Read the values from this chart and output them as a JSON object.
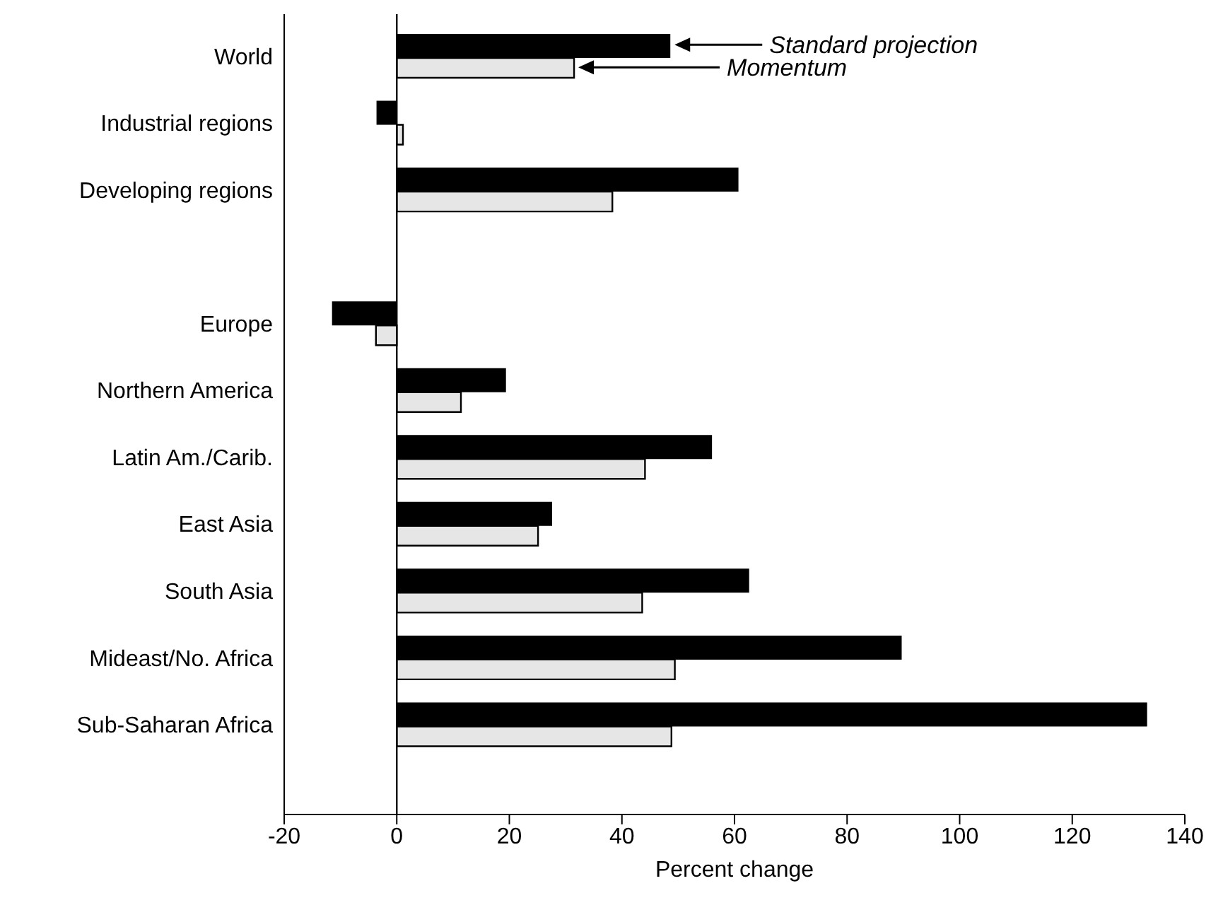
{
  "chart_data": {
    "type": "bar",
    "orientation": "horizontal",
    "xlabel": "Percent change",
    "categories": [
      "World",
      "Industrial regions",
      "Developing regions",
      null,
      "Europe",
      "Northern America",
      "Latin Am./Carib.",
      "East Asia",
      "South Asia",
      "Mideast/No. Africa",
      "Sub-Saharan Africa"
    ],
    "series": [
      {
        "color": "#000000",
        "values": [
          48.6,
          -3.6,
          60.7,
          null,
          -11.5,
          19.4,
          56,
          27.6,
          62.6,
          89.7,
          133.3
        ]
      },
      {
        "color": "#e6e6e6",
        "values": [
          31.5,
          1.1,
          38.3,
          null,
          -3.7,
          11.4,
          44.1,
          25.1,
          43.6,
          49.4,
          48.8
        ]
      }
    ],
    "xlim": [
      -20,
      140
    ],
    "xticks": [
      -20,
      0,
      20,
      40,
      60,
      80,
      100,
      120,
      140
    ],
    "ref_lines": [
      {
        "axis": "x",
        "value": 0,
        "color": "#000000"
      }
    ],
    "annotations": [
      "Standard projection",
      "Momentum"
    ],
    "grid": false,
    "legend": false
  }
}
